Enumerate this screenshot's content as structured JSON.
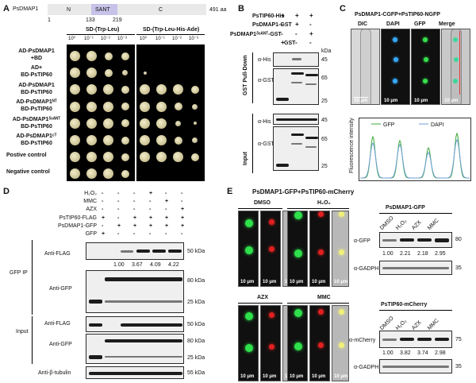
{
  "panel_A": {
    "letter": "A",
    "protein": "PsDMAP1",
    "domains": [
      "N",
      "SANT",
      "C"
    ],
    "positions": [
      "1",
      "133",
      "219"
    ],
    "length": "491 aa",
    "media": [
      "SD-(Trp-Leu)",
      "SD-(Trp-Leu-His-Ade)"
    ],
    "dilutions": [
      "10⁰",
      "10⁻¹",
      "10⁻²",
      "10⁻³",
      "10⁰",
      "10⁻¹",
      "10⁻²",
      "10⁻³"
    ],
    "rows": [
      [
        "AD-PsDMAP1",
        "+BD"
      ],
      [
        "AD+",
        "BD-PsTIP60"
      ],
      [
        "AD-PsDMAP1",
        "BD-PsTIP60"
      ],
      [
        "AD-PsDMAP1ᴺᵀ",
        "BD-PsTIP60"
      ],
      [
        "AD-PsDMAP1ᵟˢᴬᴺᵀ",
        "BD-PsTIP60"
      ],
      [
        "AD-PsDMAP1ᶜᵀ",
        "BD-PsTIP60"
      ],
      [
        "Postive control"
      ],
      [
        "Negative control"
      ]
    ]
  },
  "panel_B": {
    "letter": "B",
    "header_rows": [
      {
        "label": "PsTIP60-His",
        "marks": [
          "+",
          "+",
          "+"
        ]
      },
      {
        "label": "PsDMAP1-GST",
        "marks": [
          "-",
          "+",
          "-"
        ]
      },
      {
        "label": "PsDMAP1ᵟˢᴬᴺᵀ-GST",
        "marks": [
          "-",
          "-",
          "+"
        ]
      },
      {
        "label": "GST",
        "marks": [
          "+",
          "-",
          "-"
        ]
      }
    ],
    "kda": "kDa",
    "sections": [
      "GST Pull-Down",
      "Input"
    ],
    "antibodies": [
      "α-His",
      "α-GST",
      "α-His",
      "α-GST"
    ],
    "markers_pd": [
      "45",
      "65",
      "25"
    ],
    "markers_in": [
      "45",
      "65",
      "25"
    ]
  },
  "panel_C": {
    "letter": "C",
    "title": "PsDMAP1-CGFP+PsTIP60-NGFP",
    "channels": [
      "DIC",
      "DAPI",
      "GFP",
      "Merge"
    ],
    "scale": "10 μm",
    "legend": [
      "GFP",
      "DAPI"
    ],
    "ylabel": "Fluorescence intensity",
    "series_colors": {
      "GFP": "#3aa83a",
      "DAPI": "#6f9fd8"
    }
  },
  "panel_D": {
    "letter": "D",
    "conditions": [
      {
        "label": "H₂O₂",
        "marks": [
          "-",
          "-",
          "-",
          "+",
          "-",
          "-"
        ]
      },
      {
        "label": "MMC",
        "marks": [
          "-",
          "-",
          "-",
          "-",
          "+",
          "-"
        ]
      },
      {
        "label": "AZX",
        "marks": [
          "-",
          "-",
          "-",
          "-",
          "-",
          "+"
        ]
      },
      {
        "label": "PsTIP60-FLAG",
        "marks": [
          "+",
          "-",
          "+",
          "+",
          "+",
          "+"
        ]
      },
      {
        "label": "PsDMAP1-GFP",
        "marks": [
          "-",
          "+",
          "+",
          "+",
          "+",
          "+"
        ]
      },
      {
        "label": "GFP",
        "marks": [
          "+",
          "-",
          "-",
          "-",
          "-",
          "-"
        ]
      }
    ],
    "gfp_ip": "GFP IP",
    "input": "Input",
    "quant": [
      "1.00",
      "3.67",
      "4.09",
      "4.22"
    ],
    "rows": [
      {
        "label": "Anti-FLAG",
        "size": "50 kDa"
      },
      {
        "label": "Anti-GFP",
        "sizes": [
          "80 kDa",
          "25 kDa"
        ]
      },
      {
        "label": "Anti-FLAG",
        "size": "50 kDa"
      },
      {
        "label": "Anti-GFP",
        "sizes": [
          "80 kDa",
          "25 kDa"
        ]
      },
      {
        "label": "Anti-β-tubulin",
        "size": "55 kDa"
      }
    ]
  },
  "panel_E": {
    "letter": "E",
    "title": "PsDMAP1-GFP+PsTIP60-mCherry",
    "treatments": [
      "DMSO",
      "H₂O₂",
      "AZX",
      "MMC"
    ],
    "scale": "10 μm",
    "blot1": {
      "title": "PsDMAP1-GFP",
      "lanes": [
        "DMSO",
        "H₂O₂",
        "AZX",
        "MMC"
      ],
      "antibodies": [
        "α-GFP",
        "α-GADPH"
      ],
      "sizes": [
        "80",
        "35"
      ],
      "quant": [
        "1.00",
        "2.21",
        "2.18",
        "2.95"
      ]
    },
    "blot2": {
      "title": "PsTIP60-mCherry",
      "lanes": [
        "DMSO",
        "H₂O₂",
        "AZX",
        "MMC"
      ],
      "antibodies": [
        "α-mCherry",
        "α-GADPH"
      ],
      "sizes": [
        "75",
        "35"
      ],
      "quant": [
        "1.00",
        "3.82",
        "3.74",
        "2.98"
      ]
    }
  }
}
